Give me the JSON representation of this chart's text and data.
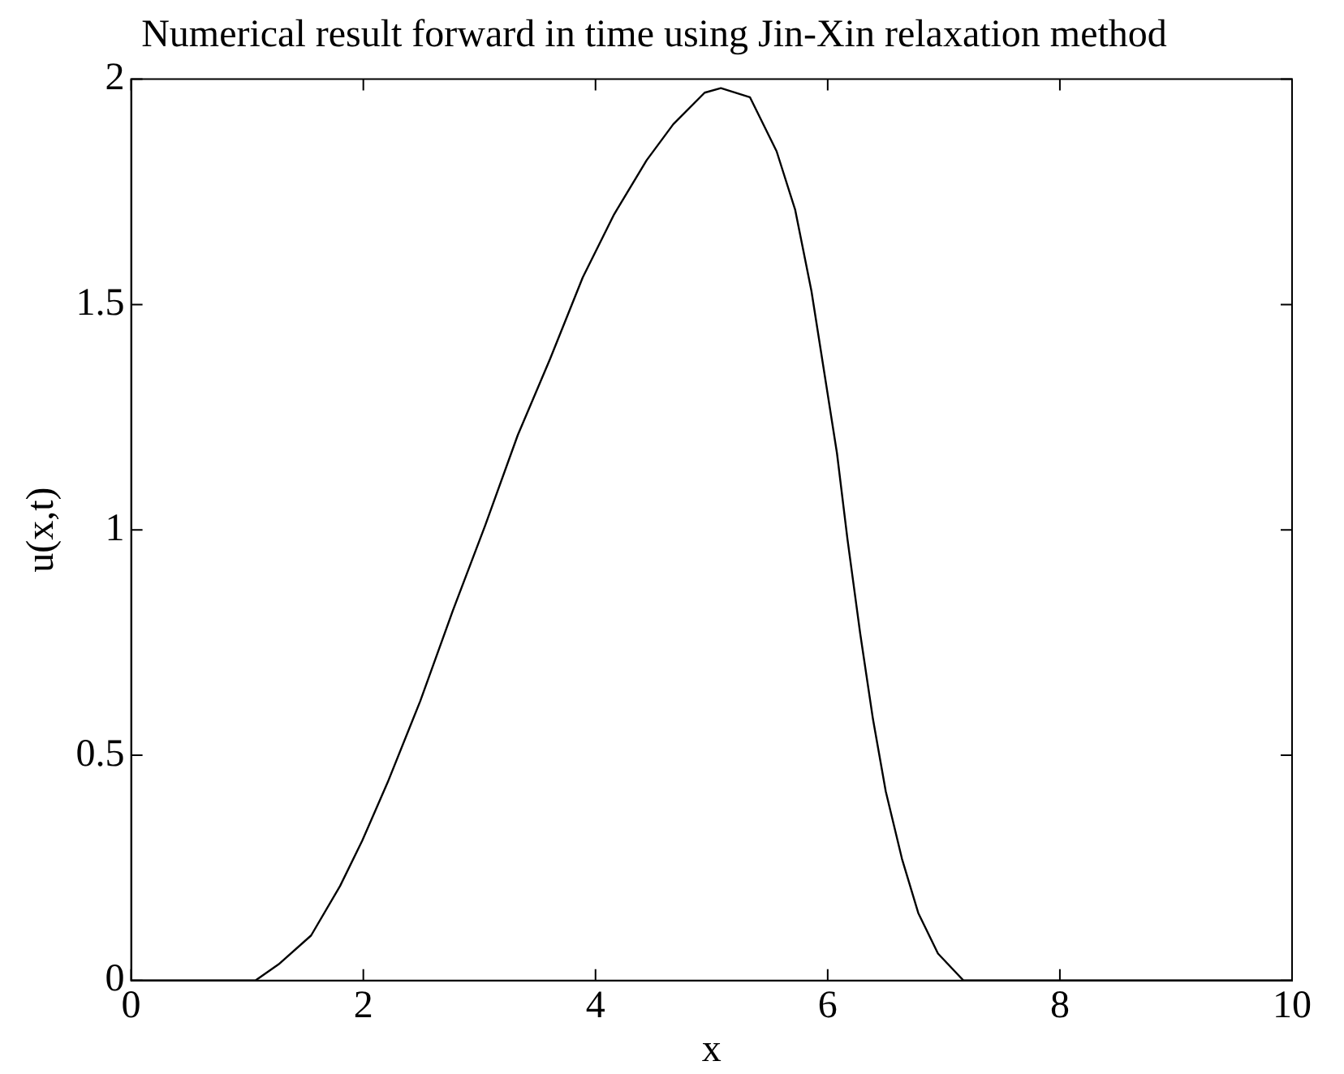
{
  "chart_data": {
    "type": "line",
    "title": "Numerical result forward in time using Jin-Xin relaxation method",
    "xlabel": "x",
    "ylabel": "u(x,t)",
    "x": [
      0,
      1.07,
      1.27,
      1.55,
      1.8,
      1.99,
      2.21,
      2.49,
      2.77,
      3.05,
      3.33,
      3.61,
      3.89,
      4.16,
      4.44,
      4.67,
      4.94,
      5.08,
      5.33,
      5.56,
      5.72,
      5.86,
      5.97,
      6.08,
      6.17,
      6.28,
      6.39,
      6.5,
      6.64,
      6.78,
      6.95,
      7.17,
      10
    ],
    "series": [
      {
        "color": "#000000",
        "values": [
          0,
          0,
          0.036,
          0.1,
          0.21,
          0.31,
          0.44,
          0.62,
          0.82,
          1.01,
          1.21,
          1.38,
          1.56,
          1.7,
          1.82,
          1.9,
          1.97,
          1.98,
          1.96,
          1.84,
          1.71,
          1.53,
          1.35,
          1.17,
          0.98,
          0.77,
          0.58,
          0.42,
          0.27,
          0.15,
          0.06,
          0,
          0
        ]
      }
    ],
    "xlim": [
      0,
      10
    ],
    "xticks": [
      0,
      2,
      4,
      6,
      8,
      10
    ],
    "ylim": [
      0,
      2
    ],
    "yticks": [
      0,
      0.5,
      1,
      1.5,
      2
    ],
    "grid": false,
    "legend": false,
    "marker": "none",
    "line_style": "solid"
  }
}
